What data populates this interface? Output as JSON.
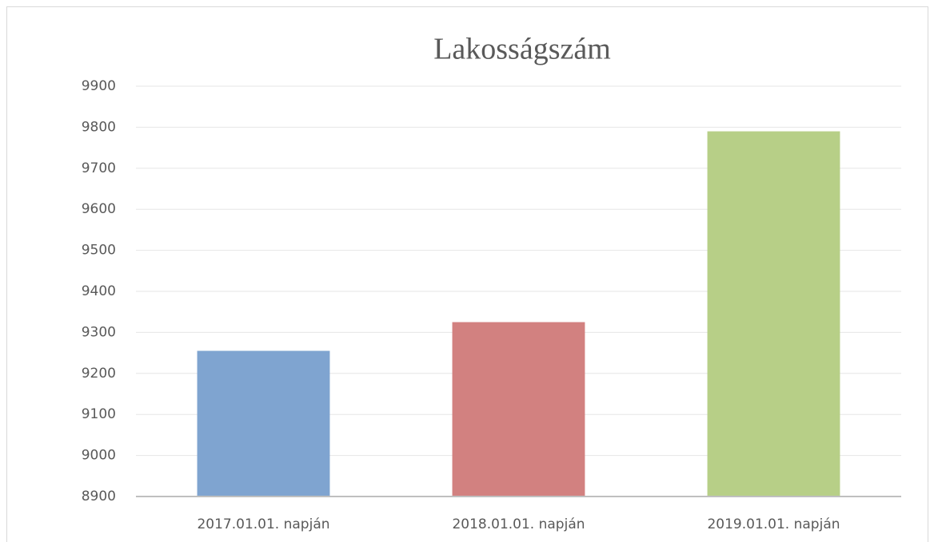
{
  "chart_data": {
    "type": "bar",
    "title": "Lakosságszám",
    "categories": [
      "2017.01.01. napján",
      "2018.01.01. napján",
      "2019.01.01. napján"
    ],
    "values": [
      9255,
      9325,
      9790
    ],
    "colors": [
      "#7fa4d0",
      "#d28180",
      "#b7cf87"
    ],
    "ylim": [
      8900,
      9900
    ],
    "yticks": [
      8900,
      9000,
      9100,
      9200,
      9300,
      9400,
      9500,
      9600,
      9700,
      9800,
      9900
    ],
    "grid": true
  }
}
